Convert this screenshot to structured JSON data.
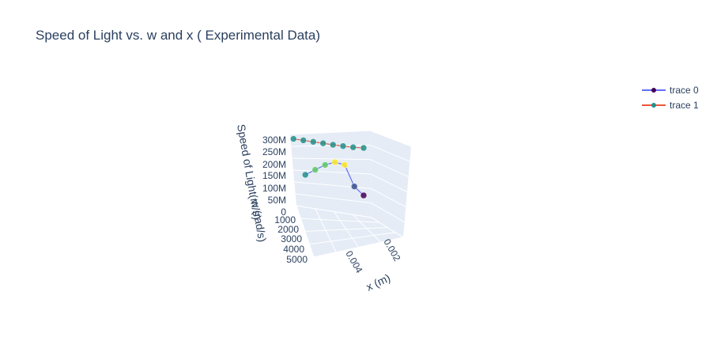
{
  "chart_data": {
    "type": "scatter3d",
    "title": "Speed of Light vs. w and x ( Experimental Data)",
    "axes": {
      "x": {
        "label": "x (m)",
        "ticks": [
          "0.004",
          "0.002"
        ]
      },
      "y": {
        "label": "w (rad/s)",
        "ticks": [
          "1000",
          "2000",
          "3000",
          "4000",
          "5000"
        ]
      },
      "z": {
        "label": "Speed of Light(m/s)",
        "ticks": [
          "0",
          "50M",
          "100M",
          "150M",
          "200M",
          "250M",
          "300M"
        ]
      }
    },
    "legend": {
      "placement": "top-right"
    },
    "series": [
      {
        "name": "trace 0",
        "mode": "lines+markers",
        "line_color": "#636efa",
        "marker_colorscale": "viridis",
        "x": [
          0.002,
          0.0025,
          0.003,
          0.0035,
          0.004,
          0.0045,
          0.005
        ],
        "y": [
          5000,
          4200,
          3600,
          3000,
          2500,
          2000,
          1500
        ],
        "z": [
          60000000,
          95000000,
          195000000,
          200000000,
          180000000,
          150000000,
          120000000
        ]
      },
      {
        "name": "trace 1",
        "mode": "lines+markers",
        "line_color": "#ef553b",
        "marker_colorscale": "viridis",
        "x": [
          0.002,
          0.0025,
          0.003,
          0.0035,
          0.004,
          0.0045,
          0.005,
          0.0055
        ],
        "y": [
          5000,
          4800,
          4400,
          4000,
          3500,
          3000,
          2500,
          2000
        ],
        "z": [
          300000000,
          299500000,
          299000000,
          299000000,
          298500000,
          298000000,
          297500000,
          297000000
        ]
      }
    ]
  }
}
